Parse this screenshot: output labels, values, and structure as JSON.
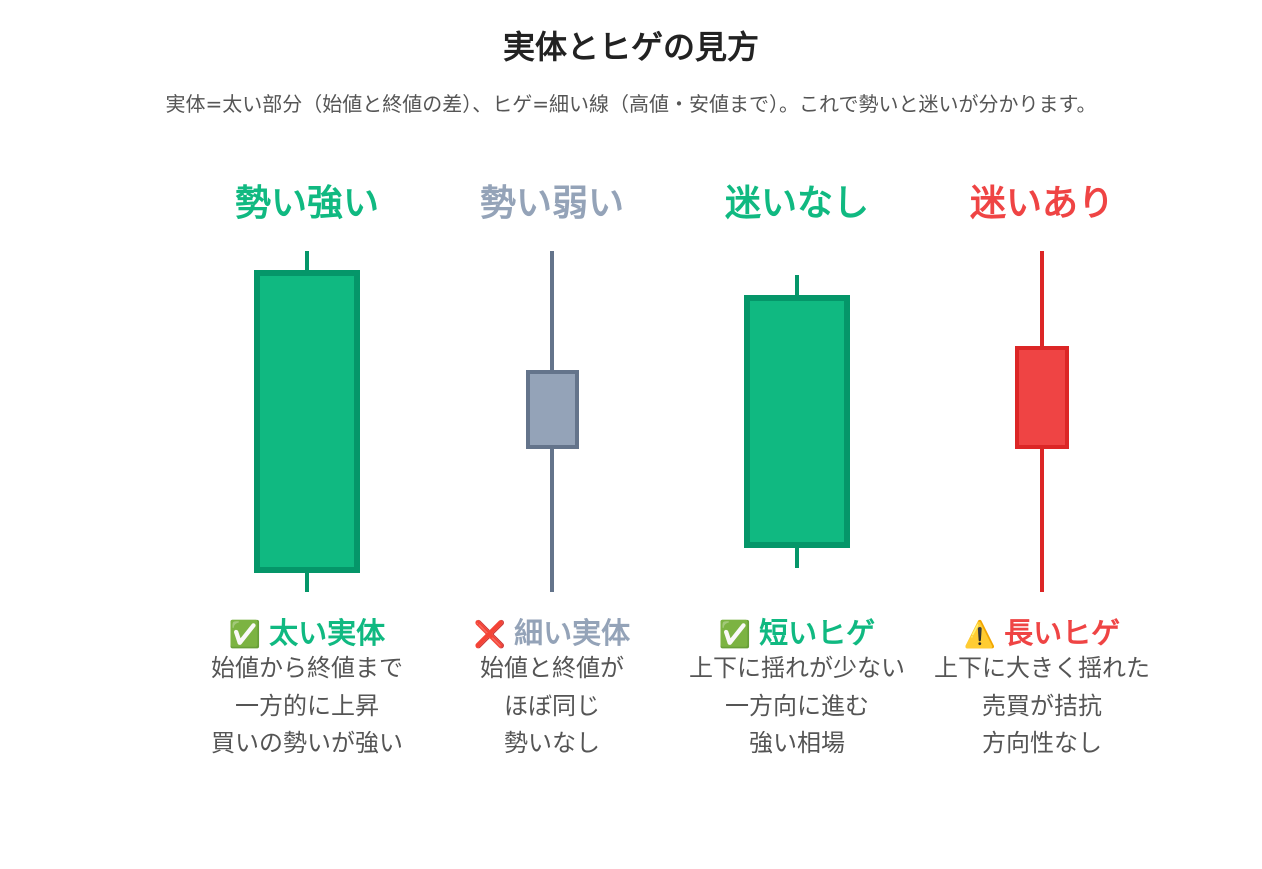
{
  "title": "実体とヒゲの見方",
  "subtitle": "実体=太い部分（始値と終値の差）、ヒゲ=細い線（高値・安値まで）。これで勢いと迷いが分かります。",
  "columns": [
    {
      "heading": "勢い強い",
      "color": "#10b981",
      "icon": "check-mark-icon",
      "icon_glyph": "✅",
      "label": "太い実体",
      "desc": [
        "始値から終値まで",
        "一方的に上昇",
        "買いの勢いが強い"
      ],
      "candle": {
        "fill": "#10b981",
        "stroke": "#059669"
      }
    },
    {
      "heading": "勢い弱い",
      "color": "#94a3b8",
      "icon": "cross-mark-icon",
      "icon_glyph": "❌",
      "label": "細い実体",
      "desc": [
        "始値と終値が",
        "ほぼ同じ",
        "勢いなし"
      ],
      "candle": {
        "fill": "#94a3b8",
        "stroke": "#64748b"
      }
    },
    {
      "heading": "迷いなし",
      "color": "#10b981",
      "icon": "check-mark-icon",
      "icon_glyph": "✅",
      "label": "短いヒゲ",
      "desc": [
        "上下に揺れが少ない",
        "一方向に進む",
        "強い相場"
      ],
      "candle": {
        "fill": "#10b981",
        "stroke": "#059669"
      }
    },
    {
      "heading": "迷いあり",
      "color": "#ef4444",
      "icon": "warning-icon",
      "icon_glyph": "⚠️",
      "label": "長いヒゲ",
      "desc": [
        "上下に大きく揺れた",
        "売買が拮抗",
        "方向性なし"
      ],
      "candle": {
        "fill": "#ef4444",
        "stroke": "#dc2626"
      }
    }
  ]
}
